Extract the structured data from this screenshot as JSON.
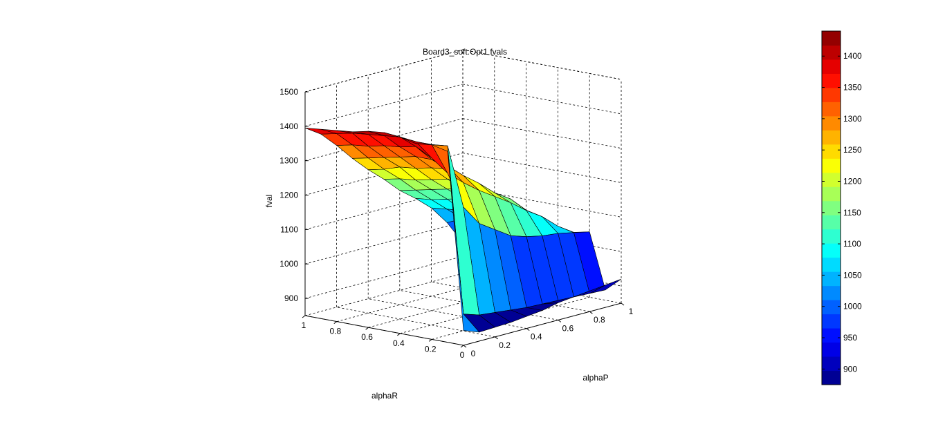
{
  "chart_data": {
    "type": "surface",
    "title": "Board3_soft.Opt1 fvals",
    "xlabel": "alphaR",
    "ylabel": "alphaP",
    "zlabel": "fval",
    "x": [
      0,
      0.1,
      0.2,
      0.3,
      0.4,
      0.5,
      0.6,
      0.7,
      0.8,
      0.9,
      1
    ],
    "y": [
      0,
      0.1,
      0.2,
      0.3,
      0.4,
      0.5,
      0.6,
      0.7,
      0.8,
      0.9,
      1
    ],
    "x_ticks": [
      "0",
      "0.2",
      "0.4",
      "0.6",
      "0.8",
      "1"
    ],
    "y_ticks": [
      "0",
      "0.2",
      "0.4",
      "0.6",
      "0.8",
      "1"
    ],
    "z_ticks": [
      "900",
      "1000",
      "1100",
      "1200",
      "1300",
      "1400",
      "1500"
    ],
    "zlim": [
      850,
      1500
    ],
    "colorbar": {
      "ticks": [
        "900",
        "950",
        "1000",
        "1050",
        "1100",
        "1150",
        "1200",
        "1250",
        "1300",
        "1350",
        "1400"
      ],
      "range": [
        875,
        1440
      ],
      "colormap": "jet",
      "levels": 25
    },
    "z": [
      [
        893,
        876,
        878,
        880,
        885,
        890,
        900,
        905,
        910,
        915,
        920
      ],
      [
        1405,
        920,
        905,
        900,
        895,
        890,
        888,
        886,
        884,
        882,
        880
      ],
      [
        1415,
        1400,
        1210,
        1150,
        1120,
        1090,
        1075,
        1065,
        1060,
        1050,
        1040
      ],
      [
        1410,
        1395,
        1300,
        1260,
        1225,
        1195,
        1165,
        1130,
        1100,
        1060,
        1030
      ],
      [
        1420,
        1395,
        1335,
        1300,
        1260,
        1225,
        1185,
        1155,
        1110,
        1065,
        1025
      ],
      [
        1425,
        1400,
        1360,
        1310,
        1270,
        1230,
        1190,
        1150,
        1100,
        1060,
        1015
      ],
      [
        1420,
        1395,
        1350,
        1310,
        1265,
        1220,
        1180,
        1140,
        1095,
        1050,
        1005
      ],
      [
        1410,
        1390,
        1345,
        1300,
        1255,
        1210,
        1170,
        1130,
        1090,
        1045,
        995
      ],
      [
        1405,
        1385,
        1335,
        1290,
        1250,
        1200,
        1160,
        1120,
        1075,
        1035,
        990
      ],
      [
        1400,
        1375,
        1330,
        1280,
        1235,
        1195,
        1150,
        1110,
        1070,
        1030,
        985
      ],
      [
        1395,
        1365,
        1320,
        1270,
        1225,
        1185,
        1140,
        1105,
        1065,
        1010,
        940
      ]
    ],
    "grid": true
  }
}
